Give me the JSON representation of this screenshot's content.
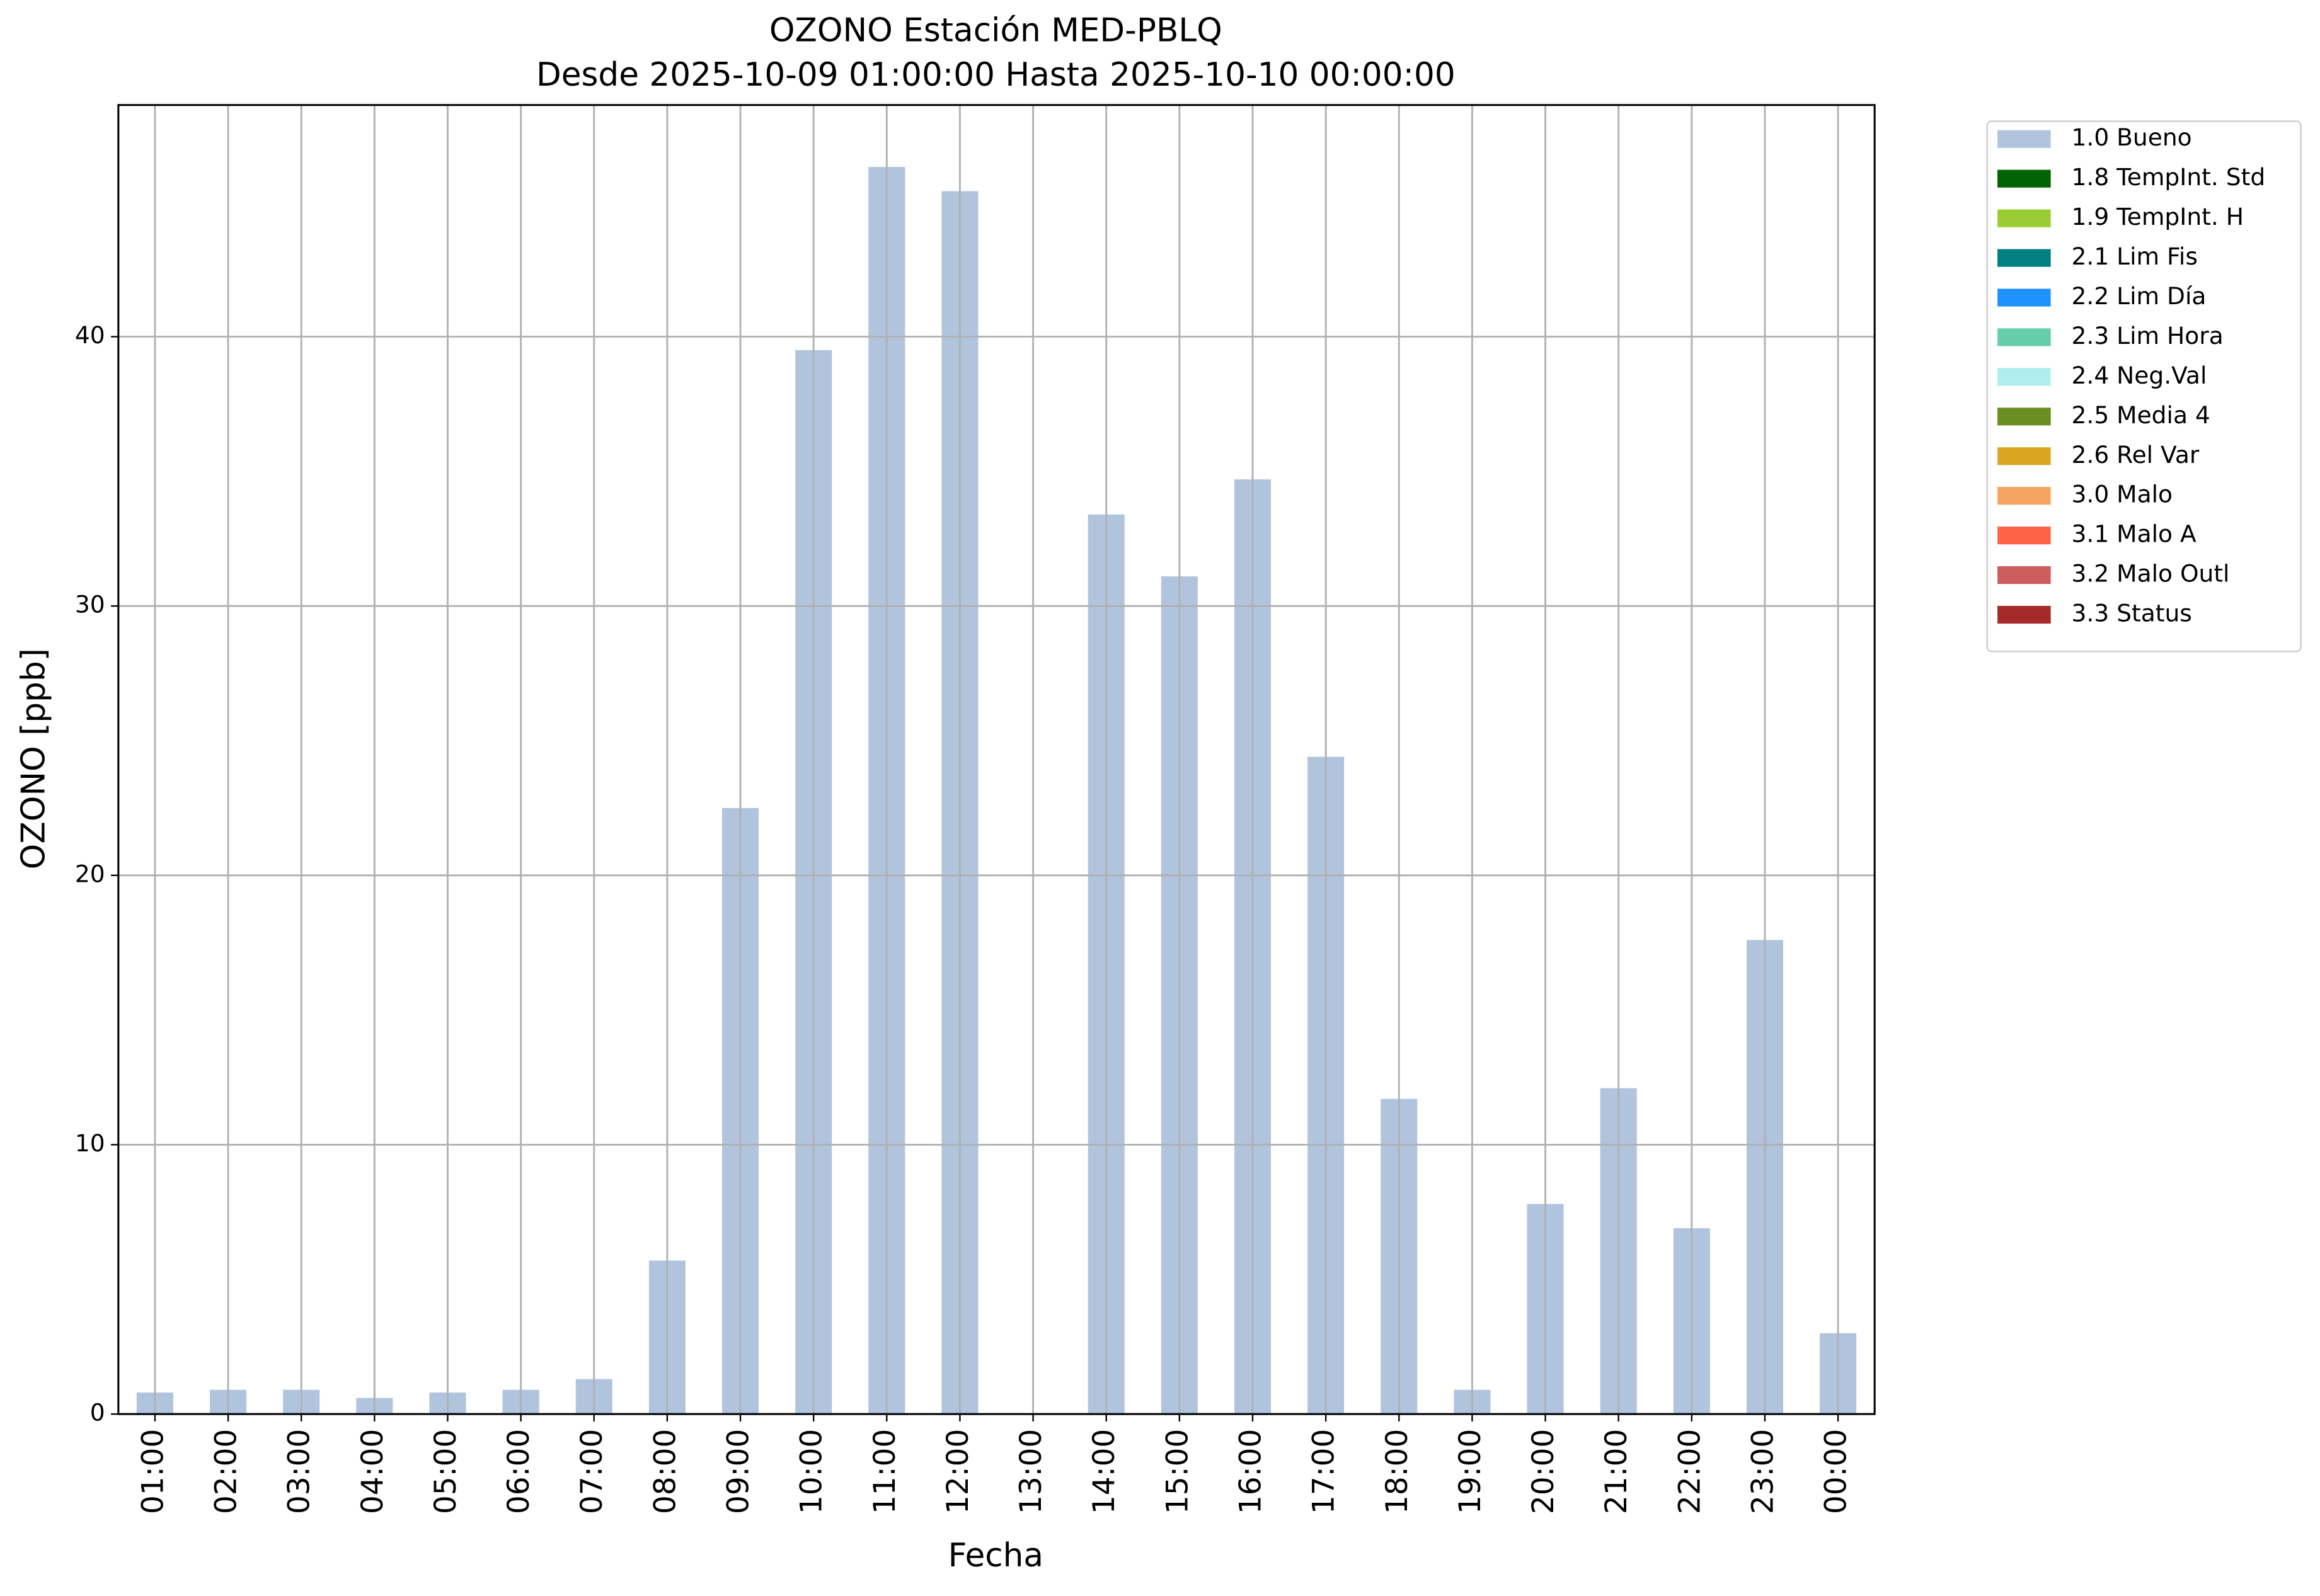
{
  "chart_data": {
    "type": "bar",
    "stacked": true,
    "title": "OZONO Estación MED-PBLQ",
    "subtitle": "Desde 2025-10-09 01:00:00 Hasta 2025-10-10 00:00:00",
    "x_label": "Fecha",
    "y_label": "OZONO [ppb]",
    "categories": [
      "01:00",
      "02:00",
      "03:00",
      "04:00",
      "05:00",
      "06:00",
      "07:00",
      "08:00",
      "09:00",
      "10:00",
      "11:00",
      "12:00",
      "13:00",
      "14:00",
      "15:00",
      "16:00",
      "17:00",
      "18:00",
      "19:00",
      "20:00",
      "21:00",
      "22:00",
      "23:00",
      "00:00"
    ],
    "series": [
      {
        "name": "1.0 Bueno",
        "color": "#b0c4de",
        "values": [
          0.8,
          0.9,
          0.9,
          0.6,
          0.8,
          0.9,
          1.3,
          5.7,
          22.5,
          39.5,
          46.3,
          45.4,
          null,
          33.4,
          31.1,
          34.7,
          24.4,
          11.7,
          0.9,
          7.8,
          12.1,
          6.9,
          17.6,
          3.0
        ]
      },
      {
        "name": "1.8 TempInt. Std",
        "color": "#006400",
        "values": [
          null,
          null,
          null,
          null,
          null,
          null,
          null,
          null,
          null,
          null,
          null,
          null,
          null,
          null,
          null,
          null,
          null,
          null,
          null,
          null,
          null,
          null,
          null,
          null
        ]
      },
      {
        "name": "1.9 TempInt. H",
        "color": "#9acd32",
        "values": [
          null,
          null,
          null,
          null,
          null,
          null,
          null,
          null,
          null,
          null,
          null,
          null,
          null,
          null,
          null,
          null,
          null,
          null,
          null,
          null,
          null,
          null,
          null,
          null
        ]
      },
      {
        "name": "2.1 Lim Fis",
        "color": "#008080",
        "values": [
          null,
          null,
          null,
          null,
          null,
          null,
          null,
          null,
          null,
          null,
          null,
          null,
          null,
          null,
          null,
          null,
          null,
          null,
          null,
          null,
          null,
          null,
          null,
          null
        ]
      },
      {
        "name": "2.2 Lim Día",
        "color": "#1e90ff",
        "values": [
          null,
          null,
          null,
          null,
          null,
          null,
          null,
          null,
          null,
          null,
          null,
          null,
          null,
          null,
          null,
          null,
          null,
          null,
          null,
          null,
          null,
          null,
          null,
          null
        ]
      },
      {
        "name": "2.3 Lim Hora",
        "color": "#66cdaa",
        "values": [
          null,
          null,
          null,
          null,
          null,
          null,
          null,
          null,
          null,
          null,
          null,
          null,
          null,
          null,
          null,
          null,
          null,
          null,
          null,
          null,
          null,
          null,
          null,
          null
        ]
      },
      {
        "name": "2.4 Neg.Val",
        "color": "#afeeee",
        "values": [
          null,
          null,
          null,
          null,
          null,
          null,
          null,
          null,
          null,
          null,
          null,
          null,
          null,
          null,
          null,
          null,
          null,
          null,
          null,
          null,
          null,
          null,
          null,
          null
        ]
      },
      {
        "name": "2.5 Media 4",
        "color": "#6b8e23",
        "values": [
          null,
          null,
          null,
          null,
          null,
          null,
          null,
          null,
          null,
          null,
          null,
          null,
          null,
          null,
          null,
          null,
          null,
          null,
          null,
          null,
          null,
          null,
          null,
          null
        ]
      },
      {
        "name": "2.6 Rel Var",
        "color": "#daa520",
        "values": [
          null,
          null,
          null,
          null,
          null,
          null,
          null,
          null,
          null,
          null,
          null,
          null,
          null,
          null,
          null,
          null,
          null,
          null,
          null,
          null,
          null,
          null,
          null,
          null
        ]
      },
      {
        "name": "3.0 Malo",
        "color": "#f4a460",
        "values": [
          null,
          null,
          null,
          null,
          null,
          null,
          null,
          null,
          null,
          null,
          null,
          null,
          null,
          null,
          null,
          null,
          null,
          null,
          null,
          null,
          null,
          null,
          null,
          null
        ]
      },
      {
        "name": "3.1 Malo A",
        "color": "#ff6347",
        "values": [
          null,
          null,
          null,
          null,
          null,
          null,
          null,
          null,
          null,
          null,
          null,
          null,
          null,
          null,
          null,
          null,
          null,
          null,
          null,
          null,
          null,
          null,
          null,
          null
        ]
      },
      {
        "name": "3.2 Malo Outl",
        "color": "#cd5c5c",
        "values": [
          null,
          null,
          null,
          null,
          null,
          null,
          null,
          null,
          null,
          null,
          null,
          null,
          null,
          null,
          null,
          null,
          null,
          null,
          null,
          null,
          null,
          null,
          null,
          null
        ]
      },
      {
        "name": "3.3 Status",
        "color": "#a52a2a",
        "values": [
          null,
          null,
          null,
          null,
          null,
          null,
          null,
          null,
          null,
          null,
          null,
          null,
          null,
          null,
          null,
          null,
          null,
          null,
          null,
          null,
          null,
          null,
          null,
          null
        ]
      }
    ],
    "ylim": [
      0,
      48.6
    ],
    "yticks": [
      0,
      10,
      20,
      30,
      40
    ],
    "grid": true,
    "legend_position": "outside-upper-right"
  }
}
